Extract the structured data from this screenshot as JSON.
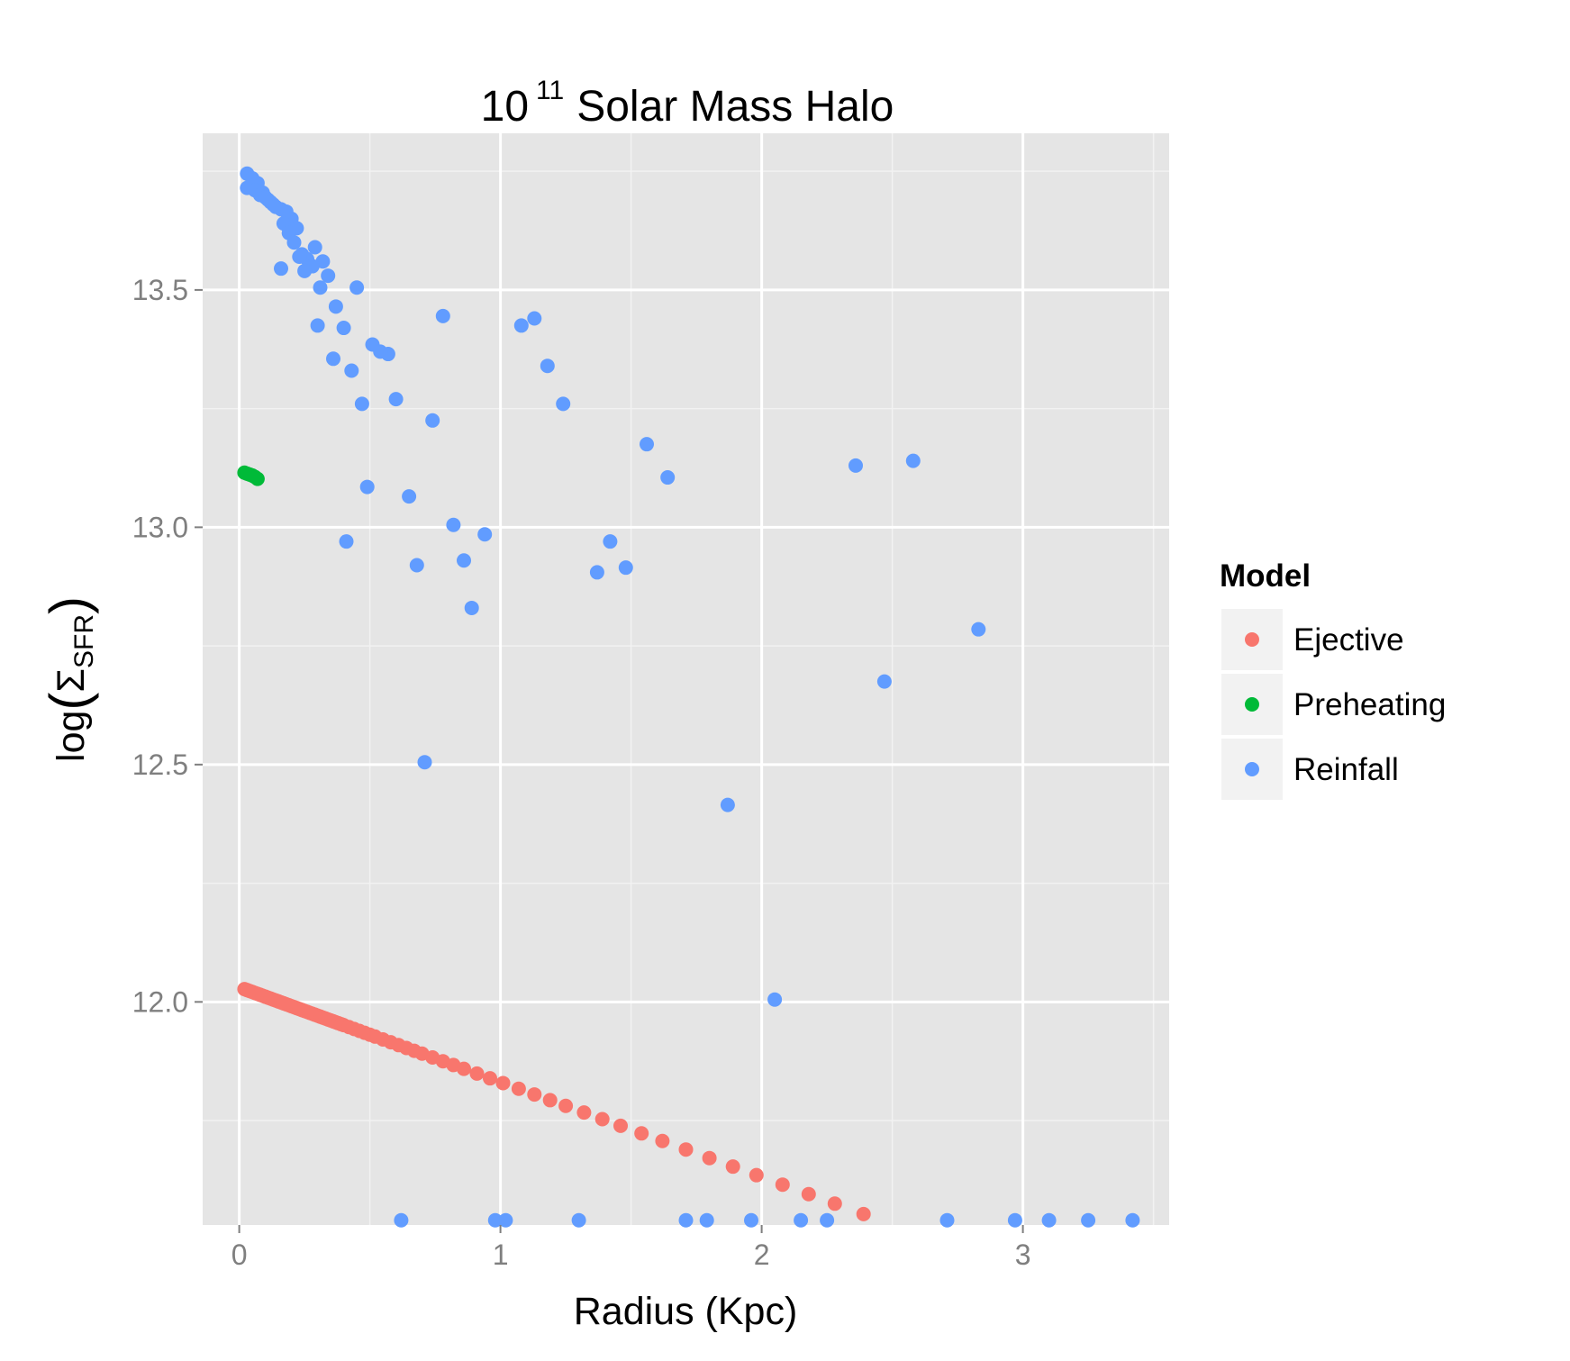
{
  "chart_data": {
    "type": "scatter",
    "title": {
      "base": "10",
      "exponent": "11",
      "rest": "Solar Mass Halo"
    },
    "xlabel": "Radius (Kpc)",
    "ylabel": {
      "func": "log",
      "symbol": "Σ",
      "subscript": "SFR"
    },
    "xlim": [
      -0.14,
      3.56
    ],
    "ylim": [
      11.53,
      13.83
    ],
    "x_ticks": [
      0,
      1,
      2,
      3
    ],
    "x_tick_labels": [
      "0",
      "1",
      "2",
      "3"
    ],
    "y_ticks": [
      12.0,
      12.5,
      13.0,
      13.5
    ],
    "y_tick_labels": [
      "12.0",
      "12.5",
      "13.0",
      "13.5"
    ],
    "grid": true,
    "legend": {
      "title": "Model",
      "position": "right",
      "entries": [
        "Ejective",
        "Preheating",
        "Reinfall"
      ]
    },
    "colors": {
      "Ejective": "#F8766D",
      "Preheating": "#00BA38",
      "Reinfall": "#619CFF",
      "panel": "#E5E5E5",
      "legend_key": "#F2F2F2"
    },
    "series": [
      {
        "name": "Ejective",
        "x": [
          0.02,
          0.03,
          0.04,
          0.05,
          0.06,
          0.07,
          0.08,
          0.09,
          0.1,
          0.11,
          0.12,
          0.13,
          0.14,
          0.15,
          0.16,
          0.17,
          0.18,
          0.19,
          0.2,
          0.21,
          0.22,
          0.23,
          0.24,
          0.25,
          0.26,
          0.27,
          0.28,
          0.29,
          0.3,
          0.31,
          0.32,
          0.33,
          0.34,
          0.35,
          0.36,
          0.37,
          0.38,
          0.39,
          0.4,
          0.42,
          0.44,
          0.46,
          0.48,
          0.5,
          0.52,
          0.55,
          0.58,
          0.61,
          0.64,
          0.67,
          0.7,
          0.74,
          0.78,
          0.82,
          0.86,
          0.91,
          0.96,
          1.01,
          1.07,
          1.13,
          1.19,
          1.25,
          1.32,
          1.39,
          1.46,
          1.54,
          1.62,
          1.71,
          1.8,
          1.89,
          1.98,
          2.08,
          2.18,
          2.28,
          2.39
        ],
        "y": [
          12.027,
          12.025,
          12.023,
          12.021,
          12.019,
          12.017,
          12.015,
          12.013,
          12.011,
          12.009,
          12.007,
          12.005,
          12.003,
          12.001,
          11.999,
          11.997,
          11.995,
          11.993,
          11.991,
          11.989,
          11.987,
          11.985,
          11.983,
          11.981,
          11.979,
          11.977,
          11.975,
          11.973,
          11.971,
          11.969,
          11.967,
          11.965,
          11.963,
          11.961,
          11.959,
          11.957,
          11.955,
          11.953,
          11.951,
          11.947,
          11.943,
          11.939,
          11.935,
          11.931,
          11.927,
          11.921,
          11.915,
          11.909,
          11.903,
          11.897,
          11.891,
          11.883,
          11.875,
          11.867,
          11.859,
          11.849,
          11.839,
          11.829,
          11.817,
          11.805,
          11.793,
          11.781,
          11.767,
          11.753,
          11.739,
          11.723,
          11.707,
          11.689,
          11.671,
          11.653,
          11.635,
          11.615,
          11.595,
          11.575,
          11.553
        ]
      },
      {
        "name": "Preheating",
        "x": [
          0.02,
          0.03,
          0.04,
          0.05,
          0.06,
          0.07
        ],
        "y": [
          13.115,
          13.113,
          13.111,
          13.109,
          13.106,
          13.102
        ]
      },
      {
        "name": "Reinfall",
        "x": [
          0.03,
          0.05,
          0.07,
          0.03,
          0.06,
          0.09,
          0.08,
          0.11,
          0.13,
          0.1,
          0.12,
          0.14,
          0.16,
          0.18,
          0.2,
          0.22,
          0.17,
          0.19,
          0.21,
          0.24,
          0.26,
          0.29,
          0.28,
          0.32,
          0.25,
          0.34,
          0.23,
          0.31,
          0.16,
          0.37,
          0.45,
          0.3,
          0.4,
          0.36,
          0.51,
          0.57,
          0.54,
          0.43,
          0.47,
          0.6,
          0.78,
          0.74,
          1.08,
          1.13,
          1.18,
          1.24,
          1.56,
          1.64,
          0.49,
          0.65,
          0.82,
          0.94,
          0.41,
          0.68,
          0.86,
          0.89,
          1.37,
          1.42,
          1.48,
          0.71,
          1.87,
          2.05,
          2.36,
          2.58,
          2.83,
          2.47,
          0.62,
          0.98,
          1.02,
          1.3,
          1.71,
          1.79,
          1.96,
          2.15,
          2.25,
          2.71,
          2.97,
          3.1,
          3.25,
          3.42
        ],
        "y": [
          13.745,
          13.735,
          13.725,
          13.715,
          13.71,
          13.705,
          13.7,
          13.69,
          13.68,
          13.695,
          13.685,
          13.675,
          13.67,
          13.665,
          13.65,
          13.63,
          13.64,
          13.62,
          13.6,
          13.575,
          13.565,
          13.59,
          13.55,
          13.56,
          13.54,
          13.53,
          13.57,
          13.505,
          13.545,
          13.465,
          13.505,
          13.425,
          13.42,
          13.355,
          13.385,
          13.365,
          13.37,
          13.33,
          13.26,
          13.27,
          13.445,
          13.225,
          13.425,
          13.44,
          13.34,
          13.26,
          13.175,
          13.105,
          13.085,
          13.065,
          13.005,
          12.985,
          12.97,
          12.92,
          12.93,
          12.83,
          12.905,
          12.97,
          12.915,
          12.505,
          12.415,
          12.005,
          13.13,
          13.14,
          12.785,
          12.675,
          11.54,
          11.54,
          11.54,
          11.54,
          11.54,
          11.54,
          11.54,
          11.54,
          11.54,
          11.54,
          11.54,
          11.54,
          11.54,
          11.54
        ]
      }
    ]
  }
}
